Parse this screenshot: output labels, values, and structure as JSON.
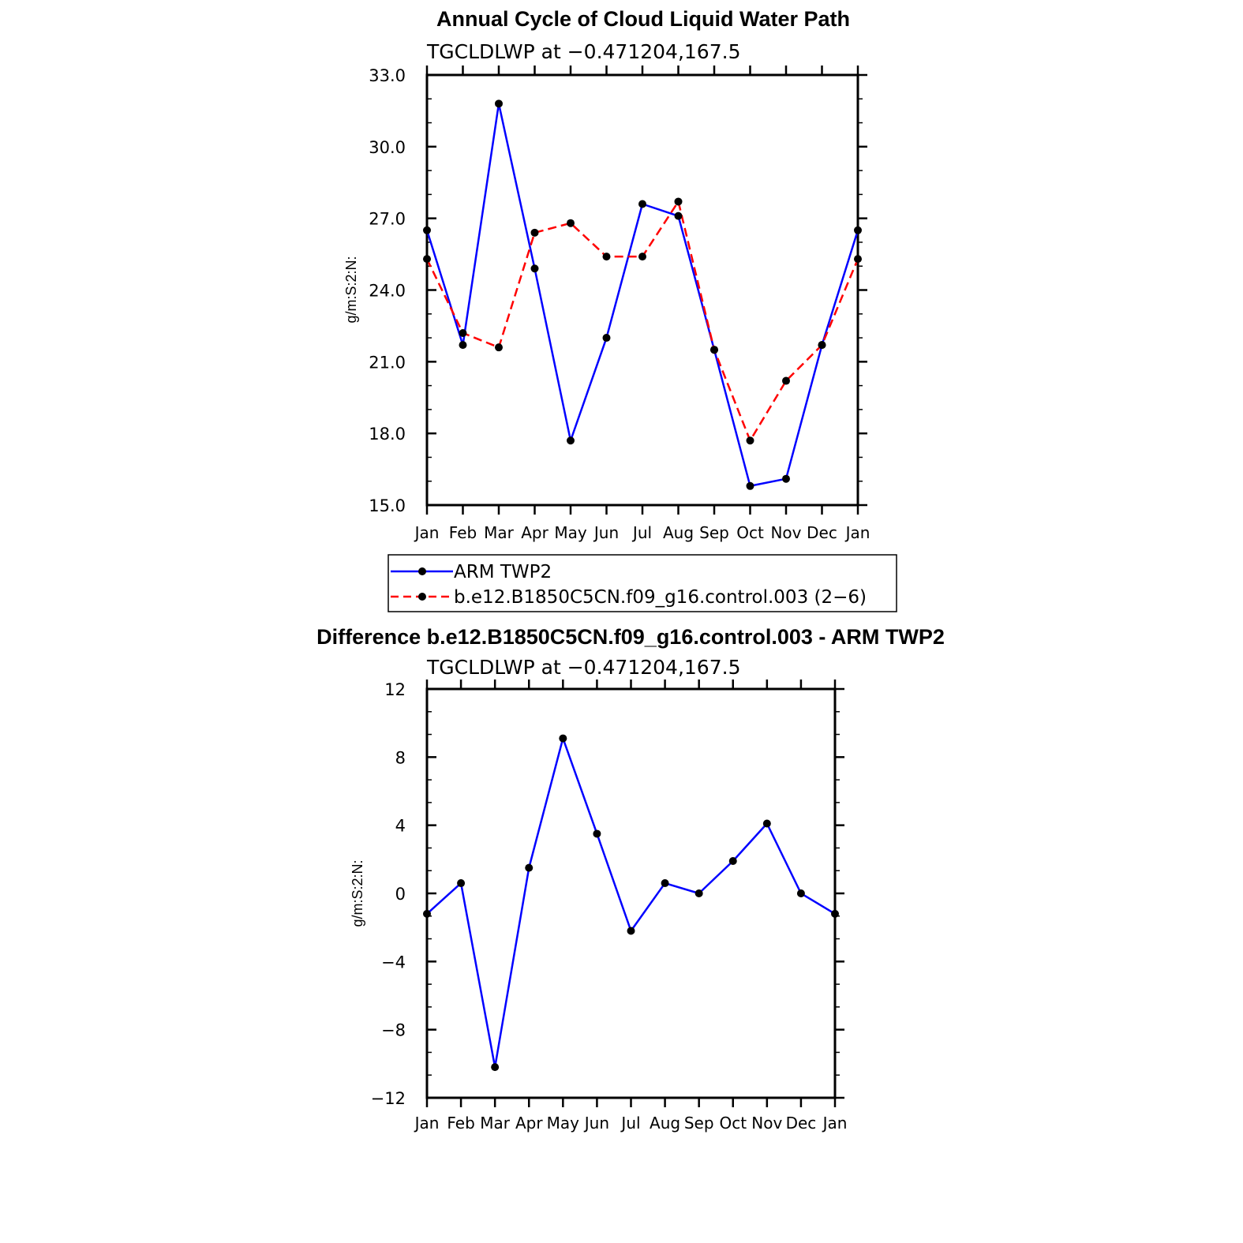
{
  "chart_data": [
    {
      "type": "line",
      "title": "Annual Cycle of Cloud Liquid Water Path",
      "subtitle": "TGCLDLWP at −0.471204,167.5",
      "ylabel": "g/m:S:2:N:",
      "xlabel": "",
      "ylim": [
        15.0,
        33.0
      ],
      "yticks": [
        "15.0",
        "18.0",
        "21.0",
        "24.0",
        "27.0",
        "30.0",
        "33.0"
      ],
      "categories": [
        "Jan",
        "Feb",
        "Mar",
        "Apr",
        "May",
        "Jun",
        "Jul",
        "Aug",
        "Sep",
        "Oct",
        "Nov",
        "Dec",
        "Jan"
      ],
      "series": [
        {
          "name": "ARM TWP2",
          "color": "#0000ff",
          "dashed": false,
          "values": [
            26.5,
            21.7,
            31.8,
            24.9,
            17.7,
            22.0,
            27.6,
            27.1,
            21.5,
            15.8,
            16.1,
            21.7,
            26.5
          ]
        },
        {
          "name": "b.e12.B1850C5CN.f09_g16.control.003 (2−6)",
          "color": "#ff0000",
          "dashed": true,
          "values": [
            25.3,
            22.2,
            21.6,
            26.4,
            26.8,
            25.4,
            25.4,
            27.7,
            21.5,
            17.7,
            20.2,
            21.7,
            25.3
          ]
        }
      ],
      "legend": [
        "ARM TWP2",
        "b.e12.B1850C5CN.f09_g16.control.003 (2−6)"
      ]
    },
    {
      "type": "line",
      "title": "Difference b.e12.B1850C5CN.f09_g16.control.003 - ARM TWP2",
      "subtitle": "TGCLDLWP at −0.471204,167.5",
      "ylabel": "g/m:S:2:N:",
      "xlabel": "",
      "ylim": [
        -12,
        12
      ],
      "yticks": [
        "−12",
        "−8",
        "−4",
        "0",
        "4",
        "8",
        "12"
      ],
      "categories": [
        "Jan",
        "Feb",
        "Mar",
        "Apr",
        "May",
        "Jun",
        "Jul",
        "Aug",
        "Sep",
        "Oct",
        "Nov",
        "Dec",
        "Jan"
      ],
      "series": [
        {
          "name": "Difference",
          "color": "#0000ff",
          "dashed": false,
          "values": [
            -1.2,
            0.6,
            -10.2,
            1.5,
            9.1,
            3.5,
            -2.2,
            0.6,
            0.0,
            1.9,
            4.1,
            0.0,
            -1.2
          ]
        }
      ]
    }
  ]
}
